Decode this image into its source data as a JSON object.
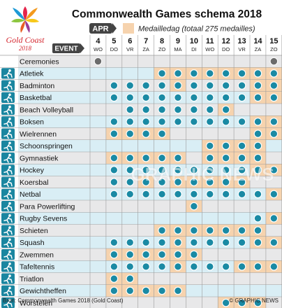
{
  "logo": {
    "line1": "Gold Coast",
    "line2": "2018"
  },
  "title": "Commonwealth Games schema 2018",
  "month_tag": "APR",
  "legend_label": "Medailledag (totaal 275 medailles)",
  "event_header": "EVENT",
  "watermark": "GRAPHIC NEWS",
  "footer": {
    "source": "Bron: Commonwealth Games 2018 (Gold Coast)",
    "credit": "© GRAPHIC NEWS"
  },
  "colors": {
    "dot": "#1a8aa4",
    "medal": "#f6d3ae",
    "row_a": "#e8e8e9",
    "row_b": "#d9eef5",
    "grid": "#9b9b9b",
    "title": "#111111"
  },
  "chart_data": {
    "type": "table",
    "month": "APR",
    "days": [
      {
        "num": "4",
        "dow": "WO"
      },
      {
        "num": "5",
        "dow": "DO"
      },
      {
        "num": "6",
        "dow": "VR"
      },
      {
        "num": "7",
        "dow": "ZA"
      },
      {
        "num": "8",
        "dow": "ZO"
      },
      {
        "num": "9",
        "dow": "MA"
      },
      {
        "num": "10",
        "dow": "DI"
      },
      {
        "num": "11",
        "dow": "WO"
      },
      {
        "num": "12",
        "dow": "DO"
      },
      {
        "num": "13",
        "dow": "VR"
      },
      {
        "num": "14",
        "dow": "ZA"
      },
      {
        "num": "15",
        "dow": "ZO"
      }
    ],
    "events": [
      {
        "name": "Ceremonies",
        "icon": "ceremony-icon",
        "days": [
          0,
          11
        ],
        "medal_days": []
      },
      {
        "name": "Atletiek",
        "icon": "athletics-icon",
        "days": [
          4,
          5,
          6,
          7,
          8,
          9,
          10,
          11
        ],
        "medal_days": [
          4,
          5,
          6,
          7,
          8,
          9,
          10,
          11
        ]
      },
      {
        "name": "Badminton",
        "icon": "badminton-icon",
        "days": [
          1,
          2,
          3,
          4,
          5,
          6,
          7,
          8,
          9,
          10,
          11
        ],
        "medal_days": [
          5,
          10,
          11
        ]
      },
      {
        "name": "Basketbal",
        "icon": "basketball-icon",
        "days": [
          1,
          2,
          3,
          4,
          5,
          6,
          7,
          8,
          9,
          10,
          11
        ],
        "medal_days": [
          10,
          11
        ]
      },
      {
        "name": "Beach Volleyball",
        "icon": "beach-volleyball-icon",
        "days": [
          2,
          3,
          4,
          5,
          6,
          7,
          8
        ],
        "medal_days": [
          8
        ]
      },
      {
        "name": "Boksen",
        "icon": "boxing-icon",
        "days": [
          1,
          2,
          3,
          4,
          5,
          6,
          7,
          8,
          9,
          10,
          11
        ],
        "medal_days": [
          10,
          11
        ]
      },
      {
        "name": "Wielrennen",
        "icon": "cycling-icon",
        "days": [
          1,
          2,
          3,
          4,
          10,
          11
        ],
        "medal_days": [
          1,
          2,
          3,
          4,
          10,
          11
        ]
      },
      {
        "name": "Schoonspringen",
        "icon": "diving-icon",
        "days": [
          7,
          8,
          9,
          10
        ],
        "medal_days": [
          7,
          8,
          9,
          10
        ]
      },
      {
        "name": "Gymnastiek",
        "icon": "gymnastics-icon",
        "days": [
          1,
          2,
          3,
          4,
          5,
          7,
          8,
          9,
          10
        ],
        "medal_days": [
          1,
          2,
          3,
          4,
          5,
          7,
          8,
          9,
          10
        ]
      },
      {
        "name": "Hockey",
        "icon": "hockey-icon",
        "days": [
          1,
          2,
          3,
          4,
          5,
          6,
          7,
          8,
          9,
          10,
          11
        ],
        "medal_days": [
          10,
          11
        ]
      },
      {
        "name": "Koersbal",
        "icon": "lawn-bowls-icon",
        "days": [
          1,
          2,
          3,
          4,
          5,
          6,
          7,
          8,
          9
        ],
        "medal_days": [
          3,
          5,
          6,
          7,
          8,
          9
        ]
      },
      {
        "name": "Netbal",
        "icon": "netball-icon",
        "days": [
          1,
          2,
          3,
          4,
          5,
          6,
          7,
          8,
          9,
          10,
          11
        ],
        "medal_days": [
          11
        ]
      },
      {
        "name": "Para Powerlifting",
        "icon": "powerlifting-icon",
        "days": [
          6
        ],
        "medal_days": [
          6
        ]
      },
      {
        "name": "Rugby Sevens",
        "icon": "rugby-icon",
        "days": [
          10,
          11
        ],
        "medal_days": [
          11
        ]
      },
      {
        "name": "Schieten",
        "icon": "shooting-icon",
        "days": [
          4,
          5,
          6,
          7,
          8,
          9,
          10
        ],
        "medal_days": [
          4,
          5,
          6,
          7,
          8,
          9,
          10
        ]
      },
      {
        "name": "Squash",
        "icon": "squash-icon",
        "days": [
          1,
          2,
          3,
          4,
          5,
          6,
          7,
          8,
          9,
          10,
          11
        ],
        "medal_days": [
          5,
          10,
          11
        ]
      },
      {
        "name": "Zwemmen",
        "icon": "swimming-icon",
        "days": [
          1,
          2,
          3,
          4,
          5,
          6
        ],
        "medal_days": [
          1,
          2,
          3,
          4,
          5,
          6
        ]
      },
      {
        "name": "Tafeltennis",
        "icon": "table-tennis-icon",
        "days": [
          1,
          2,
          3,
          4,
          5,
          6,
          7,
          8,
          9,
          10,
          11
        ],
        "medal_days": [
          5,
          9,
          10,
          11
        ]
      },
      {
        "name": "Triatlon",
        "icon": "triathlon-icon",
        "days": [
          1,
          2
        ],
        "medal_days": [
          1,
          2
        ]
      },
      {
        "name": "Gewichtheffen",
        "icon": "weightlifting-icon",
        "days": [
          1,
          2,
          3,
          4,
          5
        ],
        "medal_days": [
          1,
          2,
          3,
          4,
          5
        ]
      },
      {
        "name": "Worstelen",
        "icon": "wrestling-icon",
        "days": [
          8,
          9,
          10
        ],
        "medal_days": [
          8,
          9,
          10
        ]
      }
    ]
  }
}
